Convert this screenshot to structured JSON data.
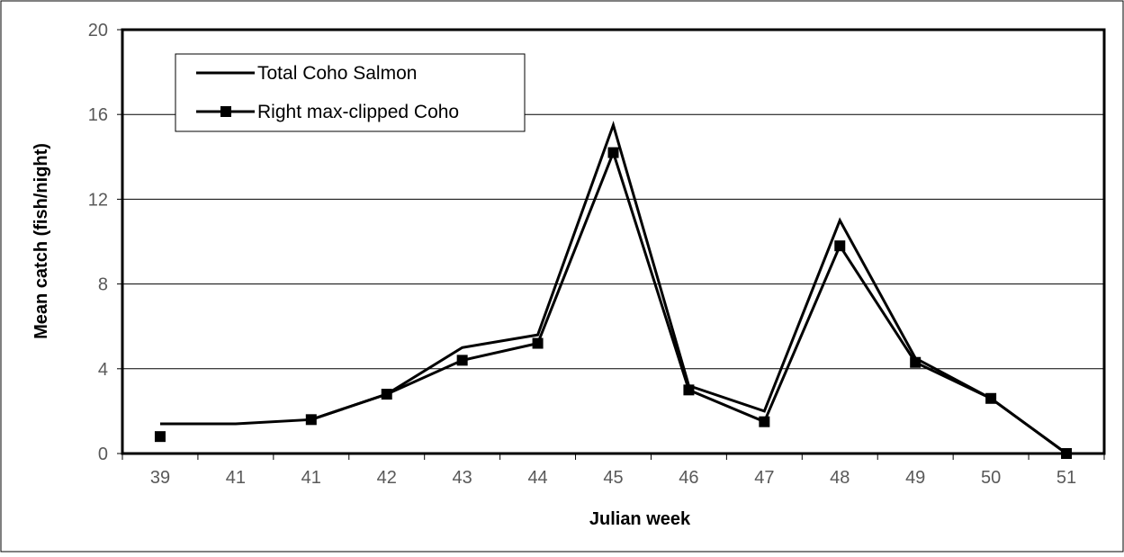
{
  "chart_data": {
    "type": "line",
    "title": "",
    "xlabel": "Julian week",
    "ylabel": "Mean catch (fish/night)",
    "categories": [
      "39",
      "41",
      "41",
      "42",
      "43",
      "44",
      "45",
      "46",
      "47",
      "48",
      "49",
      "50",
      "51"
    ],
    "ylim": [
      0,
      20
    ],
    "yticks": [
      0,
      4,
      8,
      12,
      16,
      20
    ],
    "grid": true,
    "legend_position": "top-left",
    "series": [
      {
        "name": "Total Coho Salmon",
        "marker": "none",
        "color": "#000000",
        "values": [
          1.4,
          1.4,
          1.6,
          2.8,
          5.0,
          5.6,
          15.5,
          3.2,
          2.0,
          11.0,
          4.5,
          2.6,
          0.0
        ]
      },
      {
        "name": "Right max-clipped Coho",
        "marker": "square",
        "color": "#000000",
        "values": [
          0.8,
          null,
          1.6,
          2.8,
          4.4,
          5.2,
          14.2,
          3.0,
          1.5,
          9.8,
          4.3,
          2.6,
          0.0
        ]
      }
    ]
  }
}
